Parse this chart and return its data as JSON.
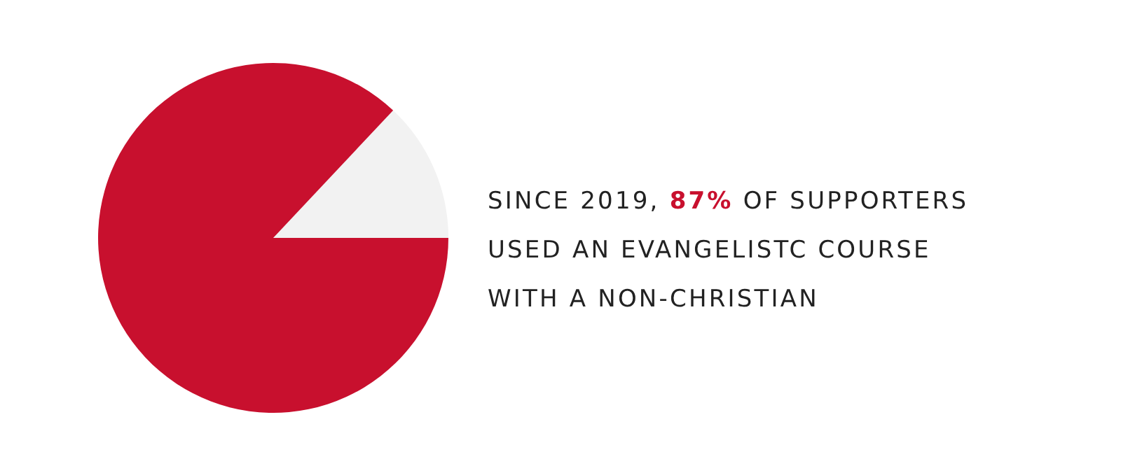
{
  "chart_data": {
    "type": "pie",
    "categories": [
      null,
      null
    ],
    "values": [
      13,
      87
    ],
    "colors": [
      "#f2f2f2",
      "#c8102e"
    ],
    "legend": false,
    "annotations": [
      "SINCE 2019, 87% OF SUPPORTERS",
      "USED AN EVANGELISTC COURSE",
      "WITH A NON-CHRISTIAN"
    ]
  }
}
